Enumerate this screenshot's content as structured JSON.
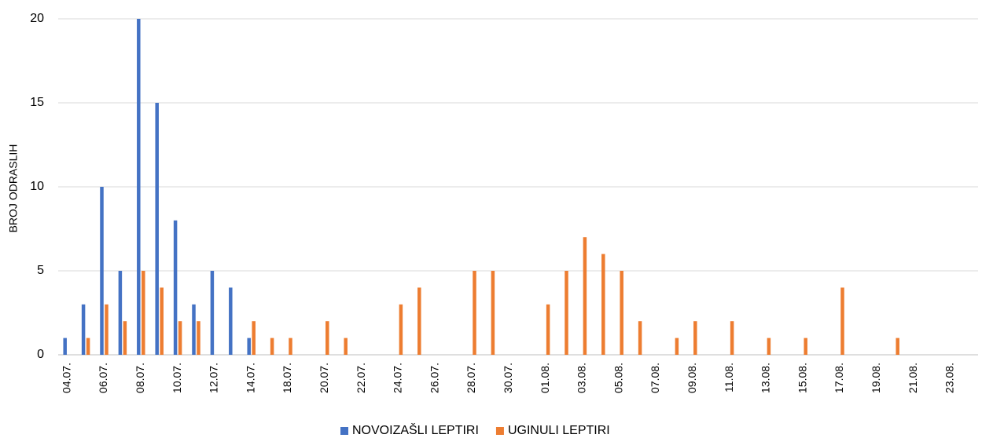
{
  "chart_data": {
    "type": "bar",
    "y_label": "BROJ ODRASLIH",
    "categories": [
      "04.07.",
      null,
      "06.07.",
      null,
      "08.07.",
      null,
      "10.07.",
      null,
      "12.07.",
      null,
      "14.07.",
      null,
      "18.07.",
      null,
      "20.07.",
      null,
      "22.07.",
      null,
      "24.07.",
      null,
      "26.07.",
      null,
      "28.07.",
      null,
      "30.07.",
      null,
      "01.08.",
      null,
      "03.08.",
      null,
      "05.08.",
      null,
      "07.08.",
      null,
      "09.08.",
      null,
      "11.08.",
      null,
      "13.08.",
      null,
      "15.08.",
      null,
      "17.08.",
      null,
      "19.08.",
      null,
      "21.08.",
      null,
      "23.08.",
      null
    ],
    "series": [
      {
        "name": "NOVOIZAŠLI LEPTIRI",
        "color": "#4472c4",
        "values": [
          1,
          3,
          10,
          5,
          20,
          15,
          8,
          3,
          5,
          4,
          1,
          0,
          0,
          0,
          0,
          0,
          0,
          0,
          0,
          0,
          0,
          0,
          0,
          0,
          0,
          0,
          0,
          0,
          0,
          0,
          0,
          0,
          0,
          0,
          0,
          0,
          0,
          0,
          0,
          0,
          0,
          0,
          0,
          0,
          0,
          0,
          0,
          0,
          0,
          0
        ]
      },
      {
        "name": "UGINULI LEPTIRI",
        "color": "#ed7d31",
        "values": [
          0,
          1,
          3,
          2,
          5,
          4,
          2,
          2,
          0,
          0,
          2,
          1,
          1,
          0,
          2,
          1,
          0,
          0,
          3,
          4,
          0,
          0,
          5,
          5,
          0,
          0,
          3,
          5,
          7,
          6,
          5,
          2,
          0,
          1,
          2,
          0,
          2,
          0,
          1,
          0,
          1,
          0,
          4,
          0,
          0,
          1,
          0,
          0,
          0,
          0
        ]
      }
    ],
    "ylim": [
      0,
      20
    ],
    "yticks": [
      0,
      5,
      10,
      15,
      20
    ],
    "grid": true,
    "legend": "bottom"
  }
}
